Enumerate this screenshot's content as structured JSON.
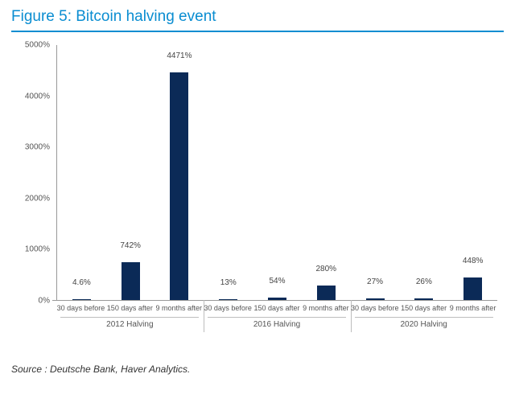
{
  "figure": {
    "title": "Figure 5: Bitcoin halving event",
    "title_color": "#0a8dd1",
    "title_fontsize": 19,
    "title_fontweight": 400,
    "title_underline_color": "#0a8dd1",
    "title_underline_width": 2,
    "source": "Source : Deutsche Bank, Haver Analytics.",
    "source_fontstyle": "italic",
    "source_fontsize": 12,
    "source_color": "#333333"
  },
  "chart": {
    "type": "bar",
    "background_color": "#ffffff",
    "axis_color": "#999999",
    "tick_font_color": "#555555",
    "tick_fontsize": 10,
    "xlabel_fontsize": 9,
    "group_label_fontsize": 10,
    "bar_color": "#0b2a57",
    "bar_label_color": "#444444",
    "bar_label_fontsize": 10,
    "ylim": [
      0,
      5000
    ],
    "ytick_step": 1000,
    "yticks": [
      0,
      1000,
      2000,
      3000,
      4000,
      5000
    ],
    "ytick_suffix": "%",
    "value_label_suffix": "%",
    "bar_width_pct": 4.2,
    "group_divider_color": "#bdbdbd",
    "group_underline_color": "#bdbdbd",
    "groups": [
      {
        "label": "2012 Halving",
        "bars": [
          {
            "x_label": "30 days before",
            "value": 4.6,
            "value_label": "4.6%"
          },
          {
            "x_label": "150 days after",
            "value": 742,
            "value_label": "742%"
          },
          {
            "x_label": "9 months after",
            "value": 4471,
            "value_label": "4471%"
          }
        ]
      },
      {
        "label": "2016 Halving",
        "bars": [
          {
            "x_label": "30 days before",
            "value": 13,
            "value_label": "13%"
          },
          {
            "x_label": "150 days after",
            "value": 54,
            "value_label": "54%"
          },
          {
            "x_label": "9 months after",
            "value": 280,
            "value_label": "280%"
          }
        ]
      },
      {
        "label": "2020 Halving",
        "bars": [
          {
            "x_label": "30 days before",
            "value": 27,
            "value_label": "27%"
          },
          {
            "x_label": "150 days after",
            "value": 26,
            "value_label": "26%"
          },
          {
            "x_label": "9 months after",
            "value": 448,
            "value_label": "448%"
          }
        ]
      }
    ]
  }
}
